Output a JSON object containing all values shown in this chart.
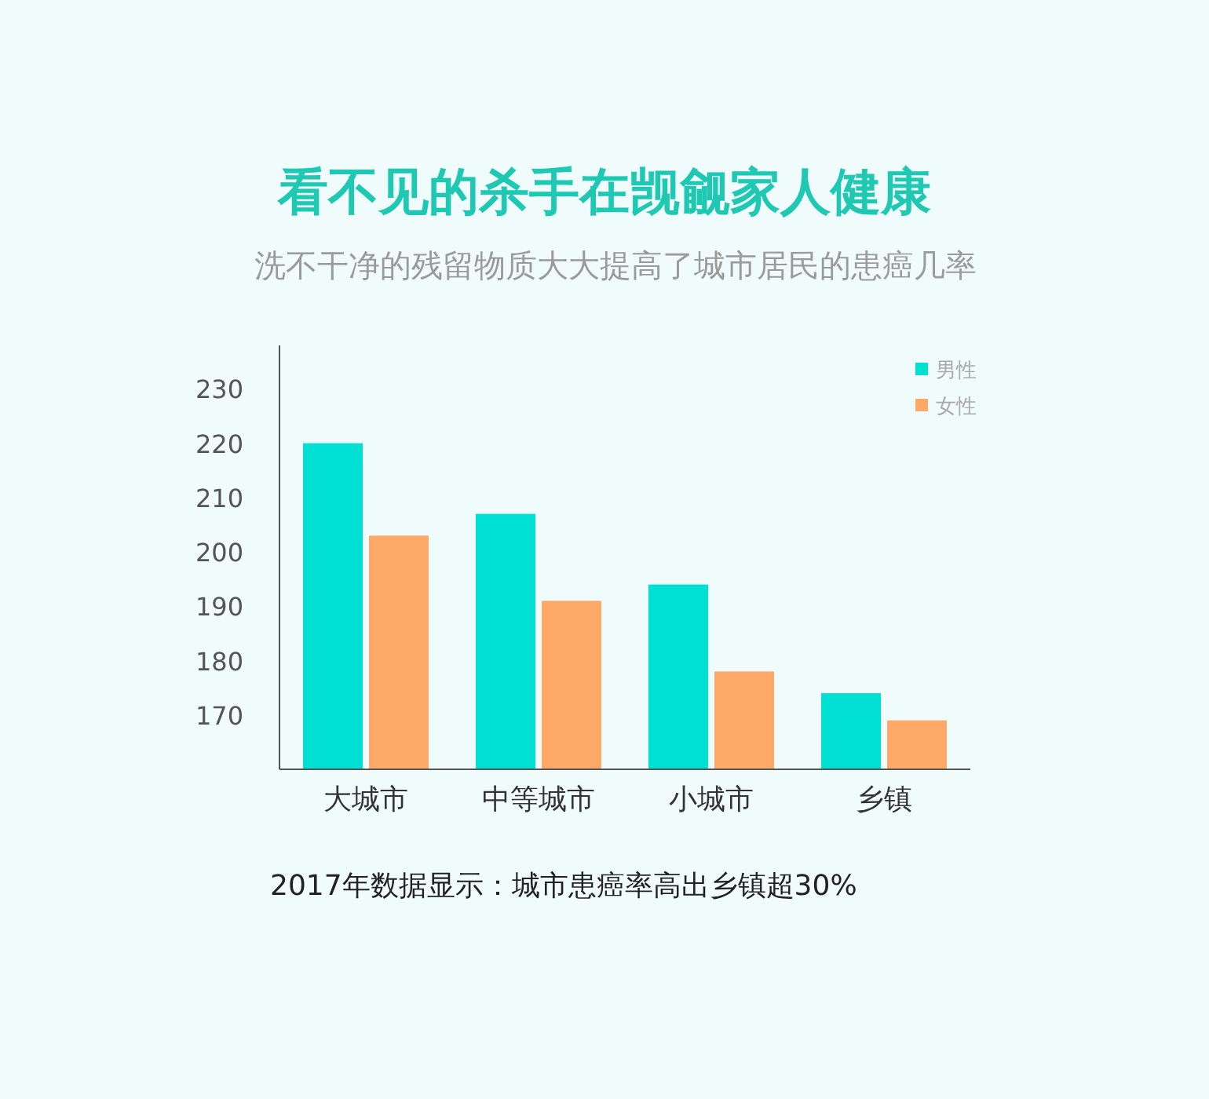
{
  "chart_data": {
    "type": "bar",
    "title": "看不见的杀手在觊觎家人健康",
    "subtitle": "洗不干净的残留物质大大提高了城市居民的患癌几率",
    "categories": [
      "大城市",
      "中等城市",
      "小城市",
      "乡镇"
    ],
    "series": [
      {
        "name": "男性",
        "color": "#00e0d2",
        "values": [
          220,
          207,
          194,
          174
        ]
      },
      {
        "name": "女性",
        "color": "#ffa968",
        "values": [
          203,
          191,
          178,
          169
        ]
      }
    ],
    "ylim": [
      160,
      238
    ],
    "yticks": [
      170,
      180,
      190,
      200,
      210,
      220,
      230
    ],
    "legend": "top right",
    "grid": false,
    "annotations": [
      "2017年数据显示：城市患癌率高出乡镇超30%"
    ]
  }
}
